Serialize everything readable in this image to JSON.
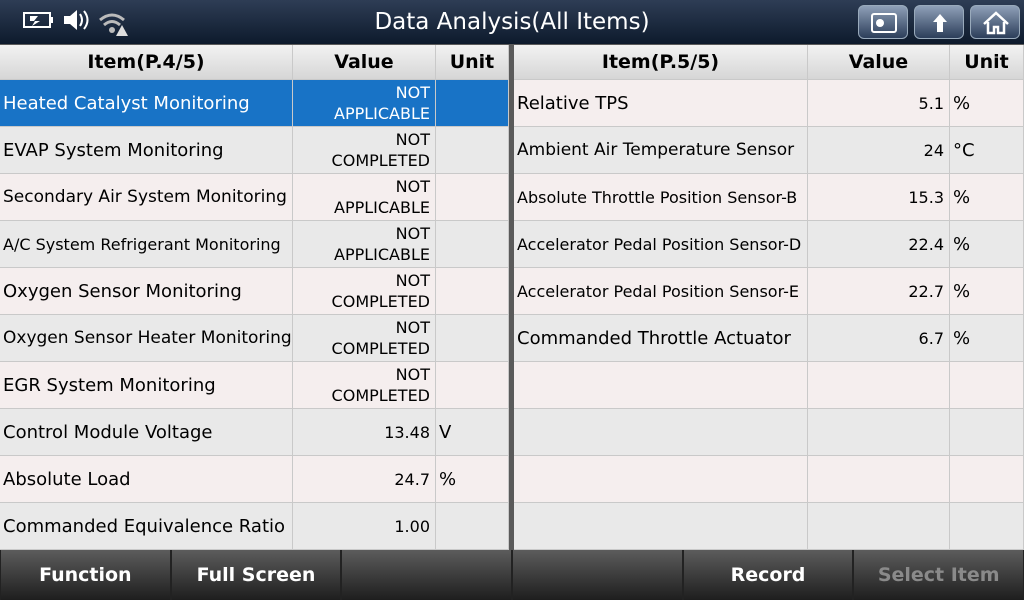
{
  "header": {
    "title": "Data Analysis(All Items)"
  },
  "left_table": {
    "columns": [
      "Item(P.4/5)",
      "Value",
      "Unit"
    ],
    "rows": [
      {
        "item": "Heated Catalyst Monitoring",
        "value": "NOT APPLICABLE",
        "selected": true
      },
      {
        "item": "EVAP System Monitoring",
        "value": "NOT COMPLETED"
      },
      {
        "item": "Secondary Air System Monitoring",
        "value": "NOT APPLICABLE"
      },
      {
        "item": "A/C System Refrigerant Monitoring",
        "value": "NOT APPLICABLE"
      },
      {
        "item": "Oxygen Sensor Monitoring",
        "value": "NOT COMPLETED"
      },
      {
        "item": "Oxygen Sensor Heater Monitoring",
        "value": "NOT COMPLETED"
      },
      {
        "item": "EGR System Monitoring",
        "value": "NOT COMPLETED"
      },
      {
        "item": "Control Module Voltage",
        "value": "13.48",
        "unit": "V"
      },
      {
        "item": "Absolute Load",
        "value": "24.7",
        "unit": "%"
      },
      {
        "item": "Commanded Equivalence Ratio",
        "value": "1.00"
      }
    ]
  },
  "right_table": {
    "columns": [
      "Item(P.5/5)",
      "Value",
      "Unit"
    ],
    "rows": [
      {
        "item": "Relative TPS",
        "value": "5.1",
        "unit": "%"
      },
      {
        "item": "Ambient Air Temperature Sensor",
        "value": "24",
        "unit": "°C"
      },
      {
        "item": "Absolute Throttle Position Sensor-B",
        "value": "15.3",
        "unit": "%"
      },
      {
        "item": "Accelerator Pedal Position Sensor-D",
        "value": "22.4",
        "unit": "%"
      },
      {
        "item": "Accelerator Pedal Position Sensor-E",
        "value": "22.7",
        "unit": "%"
      },
      {
        "item": "Commanded Throttle Actuator",
        "value": "6.7",
        "unit": "%"
      }
    ]
  },
  "footer": {
    "buttons": [
      {
        "label": "Function"
      },
      {
        "label": "Full Screen"
      },
      {},
      {},
      {
        "label": "Record"
      },
      {
        "label": "Select Item",
        "disabled": true
      }
    ]
  }
}
